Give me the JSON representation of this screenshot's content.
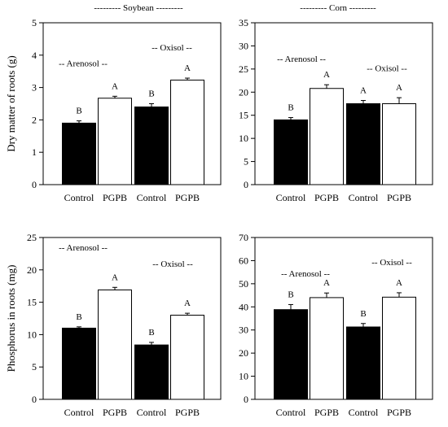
{
  "column_titles": [
    "--------- Soybean ---------",
    "--------- Corn ---------"
  ],
  "colors": {
    "control": "#000000",
    "pgpb": "#ffffff",
    "axis": "#000000"
  },
  "chart_data": [
    {
      "type": "bar",
      "ylabel": "Dry matter of roots (g)",
      "ylim": [
        0,
        5
      ],
      "yticks": [
        0,
        1,
        2,
        3,
        4,
        5
      ],
      "categories": [
        "Control",
        "PGPB",
        "Control",
        "PGPB"
      ],
      "values": [
        1.9,
        2.67,
        2.4,
        3.23
      ],
      "errors": [
        0.07,
        0.06,
        0.1,
        0.06
      ],
      "letters": [
        "B",
        "A",
        "B",
        "A"
      ],
      "annotations": [
        "-- Arenosol --",
        "-- Oxisol --"
      ]
    },
    {
      "type": "bar",
      "ylabel": "",
      "ylim": [
        0,
        35
      ],
      "yticks": [
        0,
        5,
        10,
        15,
        20,
        25,
        30,
        35
      ],
      "categories": [
        "Control",
        "PGPB",
        "Control",
        "PGPB"
      ],
      "values": [
        14.0,
        20.8,
        17.5,
        17.5
      ],
      "errors": [
        0.5,
        0.8,
        0.7,
        1.3
      ],
      "letters": [
        "B",
        "A",
        "A",
        "A"
      ],
      "annotations": [
        "-- Arenosol --",
        "-- Oxisol --"
      ]
    },
    {
      "type": "bar",
      "ylabel": "Phosphorus in roots (mg)",
      "ylim": [
        0,
        25
      ],
      "yticks": [
        0,
        5,
        10,
        15,
        20,
        25
      ],
      "categories": [
        "Control",
        "PGPB",
        "Control",
        "PGPB"
      ],
      "values": [
        11.0,
        16.9,
        8.4,
        13.0
      ],
      "errors": [
        0.2,
        0.4,
        0.4,
        0.3
      ],
      "letters": [
        "B",
        "A",
        "B",
        "A"
      ],
      "annotations": [
        "-- Arenosol --",
        "-- Oxisol --"
      ]
    },
    {
      "type": "bar",
      "ylabel": "",
      "ylim": [
        0,
        70
      ],
      "yticks": [
        0,
        10,
        20,
        30,
        40,
        50,
        60,
        70
      ],
      "categories": [
        "Control",
        "PGPB",
        "Control",
        "PGPB"
      ],
      "values": [
        38.8,
        44.0,
        31.3,
        44.2
      ],
      "errors": [
        2.2,
        2.0,
        1.5,
        1.9
      ],
      "letters": [
        "B",
        "A",
        "B",
        "A"
      ],
      "annotations": [
        "-- Arenosol --",
        "-- Oxisol --"
      ]
    }
  ]
}
